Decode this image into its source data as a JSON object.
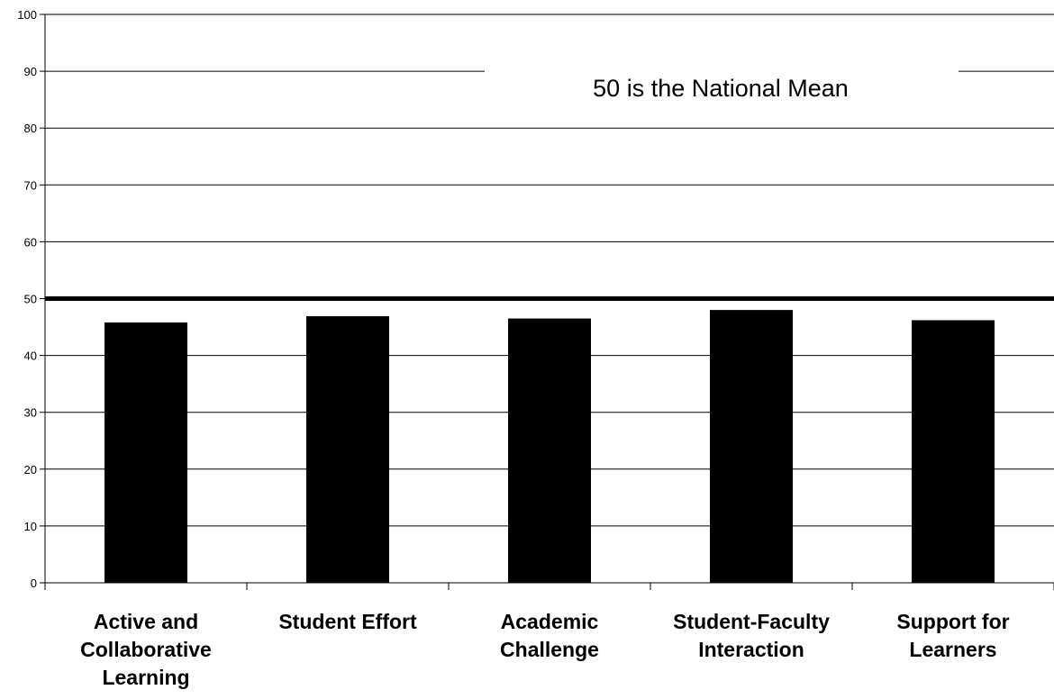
{
  "chart_data": {
    "type": "bar",
    "categories": [
      [
        "Active and",
        "Collaborative",
        "Learning"
      ],
      [
        "Student Effort"
      ],
      [
        "Academic",
        "Challenge"
      ],
      [
        "Student-Faculty",
        "Interaction"
      ],
      [
        "Support for",
        "Learners"
      ]
    ],
    "values": [
      45.8,
      46.9,
      46.5,
      48.0,
      46.2
    ],
    "ylim": [
      0,
      100
    ],
    "yticks": [
      0,
      10,
      20,
      30,
      40,
      50,
      60,
      70,
      80,
      90,
      100
    ],
    "grid": true,
    "reference_line": {
      "value": 50
    },
    "annotation": "50 is the National Mean",
    "colors": {
      "bar": "#000000",
      "grid": "#000000",
      "reference": "#000000"
    }
  }
}
